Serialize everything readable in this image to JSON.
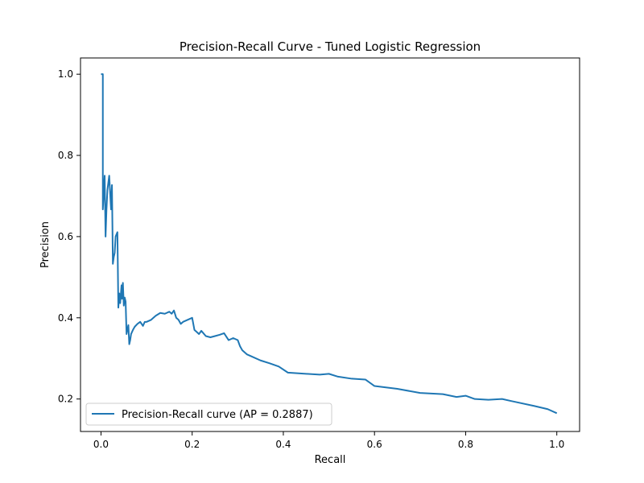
{
  "chart_data": {
    "type": "line",
    "title": "Precision-Recall Curve - Tuned Logistic Regression",
    "xlabel": "Recall",
    "ylabel": "Precision",
    "xlim": [
      -0.045,
      1.05
    ],
    "ylim": [
      0.12,
      1.04
    ],
    "x_ticks": [
      0.0,
      0.2,
      0.4,
      0.6,
      0.8,
      1.0
    ],
    "x_tick_labels": [
      "0.0",
      "0.2",
      "0.4",
      "0.6",
      "0.8",
      "1.0"
    ],
    "y_ticks": [
      0.2,
      0.4,
      0.6,
      0.8,
      1.0
    ],
    "y_tick_labels": [
      "0.2",
      "0.4",
      "0.6",
      "0.8",
      "1.0"
    ],
    "grid": false,
    "legend_position": "lower-left",
    "series": [
      {
        "name": "Precision-Recall curve (AP = 0.2887)",
        "color": "#1f77b4",
        "x": [
          0.0,
          0.004,
          0.004,
          0.008,
          0.01,
          0.012,
          0.014,
          0.018,
          0.022,
          0.024,
          0.026,
          0.028,
          0.03,
          0.032,
          0.036,
          0.038,
          0.04,
          0.042,
          0.045,
          0.046,
          0.048,
          0.05,
          0.052,
          0.054,
          0.056,
          0.06,
          0.062,
          0.064,
          0.066,
          0.07,
          0.074,
          0.08,
          0.086,
          0.092,
          0.096,
          0.1,
          0.11,
          0.12,
          0.13,
          0.14,
          0.15,
          0.155,
          0.16,
          0.165,
          0.17,
          0.175,
          0.18,
          0.19,
          0.2,
          0.205,
          0.21,
          0.215,
          0.22,
          0.23,
          0.24,
          0.25,
          0.26,
          0.27,
          0.28,
          0.29,
          0.3,
          0.305,
          0.31,
          0.32,
          0.33,
          0.35,
          0.37,
          0.39,
          0.41,
          0.45,
          0.48,
          0.5,
          0.52,
          0.55,
          0.58,
          0.6,
          0.65,
          0.7,
          0.75,
          0.78,
          0.8,
          0.82,
          0.85,
          0.88,
          0.9,
          0.95,
          0.98,
          1.0
        ],
        "y": [
          1.0,
          1.0,
          0.667,
          0.75,
          0.6,
          0.667,
          0.714,
          0.75,
          0.667,
          0.727,
          0.533,
          0.55,
          0.56,
          0.6,
          0.611,
          0.425,
          0.46,
          0.436,
          0.48,
          0.447,
          0.486,
          0.43,
          0.45,
          0.44,
          0.36,
          0.382,
          0.335,
          0.345,
          0.36,
          0.37,
          0.378,
          0.385,
          0.39,
          0.38,
          0.39,
          0.39,
          0.395,
          0.405,
          0.412,
          0.41,
          0.415,
          0.41,
          0.418,
          0.4,
          0.395,
          0.385,
          0.39,
          0.395,
          0.4,
          0.37,
          0.365,
          0.36,
          0.368,
          0.355,
          0.352,
          0.355,
          0.358,
          0.362,
          0.345,
          0.35,
          0.345,
          0.33,
          0.32,
          0.31,
          0.305,
          0.295,
          0.288,
          0.28,
          0.265,
          0.262,
          0.26,
          0.262,
          0.255,
          0.25,
          0.248,
          0.232,
          0.225,
          0.215,
          0.212,
          0.205,
          0.208,
          0.2,
          0.198,
          0.2,
          0.195,
          0.183,
          0.175,
          0.165
        ]
      }
    ]
  }
}
